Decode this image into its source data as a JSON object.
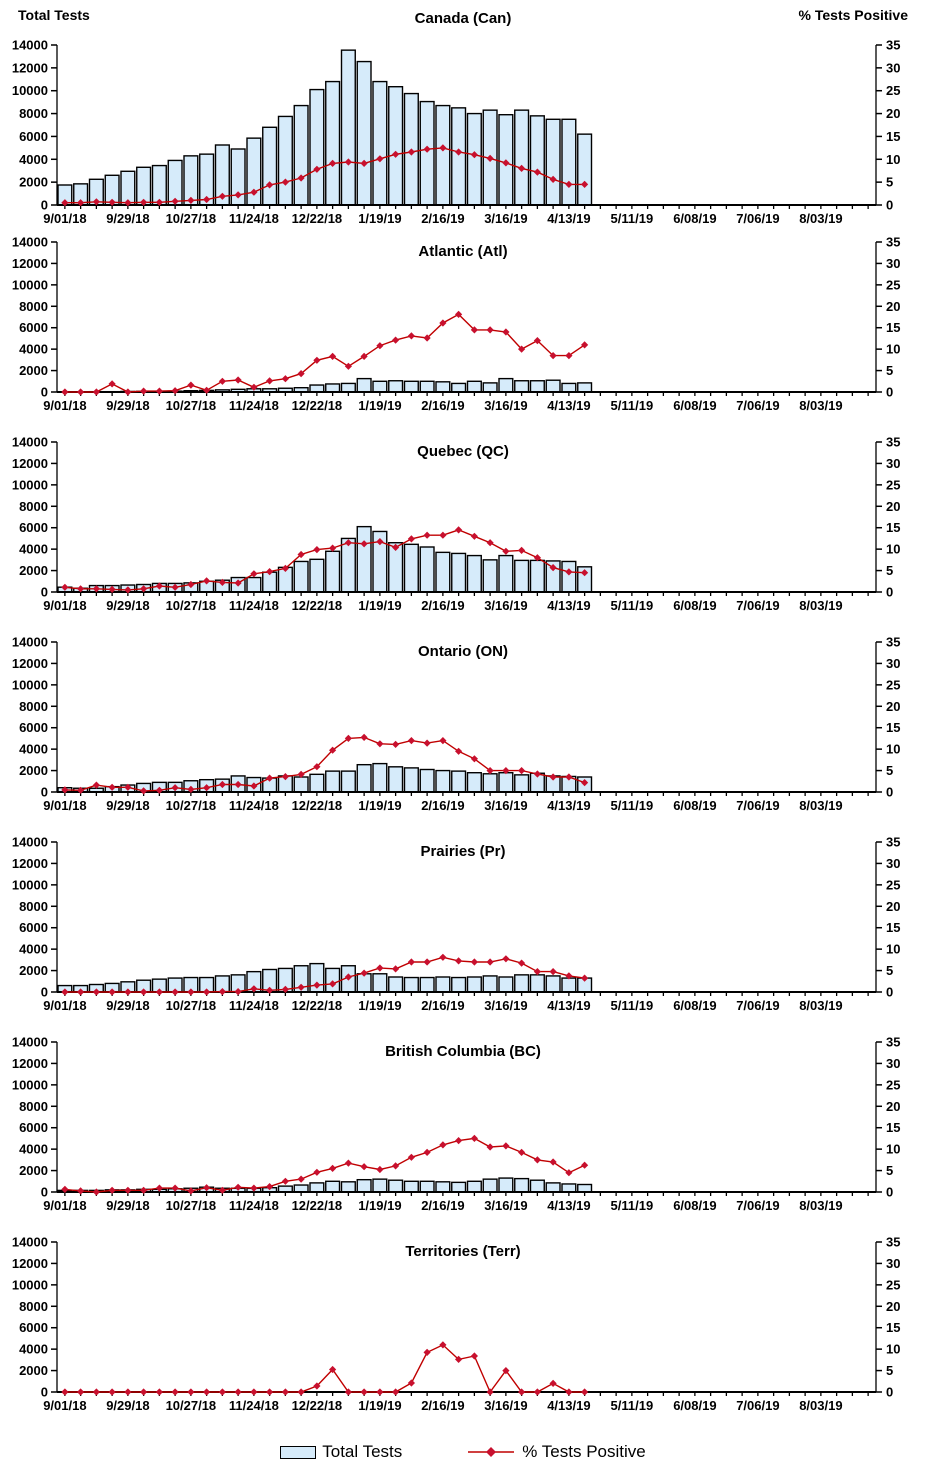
{
  "page": {
    "left_axis_title": "Total Tests",
    "right_axis_title": "% Tests Positive"
  },
  "legend": {
    "bars_label": "Total Tests",
    "line_label": "% Tests Positive"
  },
  "colors": {
    "bar_fill": "#D6EBFA",
    "bar_stroke": "#000000",
    "line": "#C00000",
    "marker": "#C8102E",
    "axis": "#000000"
  },
  "axes": {
    "y_left": {
      "min": 0,
      "max": 14000,
      "tick_labels": [
        "0",
        "2000",
        "4000",
        "6000",
        "8000",
        "10000",
        "12000",
        "14000"
      ]
    },
    "y_right": {
      "min": 0,
      "max": 35,
      "tick_labels": [
        "0",
        "5",
        "10",
        "15",
        "20",
        "25",
        "30",
        "35"
      ]
    },
    "x": {
      "total_weeks": 52,
      "labeled_every": 4,
      "tick_labels": [
        "9/01/18",
        "9/29/18",
        "10/27/18",
        "11/24/18",
        "12/22/18",
        "1/19/19",
        "2/16/19",
        "3/16/19",
        "4/13/19",
        "5/11/19",
        "6/08/19",
        "7/06/19",
        "8/03/19"
      ]
    }
  },
  "chart_data": [
    {
      "type": "bar+line",
      "title": "Canada (Can)",
      "series": [
        {
          "name": "Total Tests",
          "axis": "left",
          "values": [
            1750,
            1850,
            2250,
            2600,
            2950,
            3300,
            3450,
            3900,
            4300,
            4450,
            5250,
            4900,
            5850,
            6800,
            7750,
            8700,
            10100,
            10800,
            13550,
            12550,
            10800,
            10350,
            9750,
            9050,
            8700,
            8500,
            8000,
            8300,
            7900,
            8300,
            7800,
            7500,
            7500,
            6200
          ]
        },
        {
          "name": "% Tests Positive",
          "axis": "right",
          "values": [
            0.5,
            0.5,
            0.7,
            0.6,
            0.5,
            0.6,
            0.6,
            0.8,
            1.0,
            1.2,
            1.9,
            2.2,
            2.8,
            4.4,
            5.0,
            5.9,
            7.8,
            9.1,
            9.4,
            9.1,
            10.1,
            11.1,
            11.6,
            12.2,
            12.5,
            11.6,
            11.0,
            10.2,
            9.2,
            8.0,
            7.2,
            5.6,
            4.5,
            4.5
          ]
        }
      ]
    },
    {
      "type": "bar+line",
      "title": "Atlantic (Atl)",
      "series": [
        {
          "name": "Total Tests",
          "axis": "left",
          "values": [
            20,
            20,
            30,
            30,
            50,
            60,
            70,
            80,
            120,
            150,
            200,
            250,
            300,
            300,
            350,
            400,
            650,
            750,
            800,
            1250,
            1000,
            1050,
            1000,
            1000,
            950,
            800,
            1000,
            850,
            1250,
            1050,
            1050,
            1100,
            800,
            850
          ]
        },
        {
          "name": "% Tests Positive",
          "axis": "right",
          "values": [
            0,
            0,
            0,
            1.9,
            0,
            0.2,
            0.2,
            0.3,
            1.6,
            0.4,
            2.5,
            2.8,
            1.1,
            2.6,
            3.1,
            4.3,
            7.4,
            8.3,
            6.0,
            8.3,
            10.8,
            12.1,
            13.1,
            12.6,
            16.1,
            18.1,
            14.5,
            14.5,
            14.0,
            10.0,
            12.0,
            8.5,
            8.5,
            11.0
          ]
        }
      ]
    },
    {
      "type": "bar+line",
      "title": "Quebec (QC)",
      "series": [
        {
          "name": "Total Tests",
          "axis": "left",
          "values": [
            450,
            350,
            600,
            600,
            650,
            700,
            800,
            800,
            850,
            1000,
            1100,
            1350,
            1350,
            1850,
            2300,
            2850,
            3050,
            3800,
            5000,
            6100,
            5650,
            4600,
            4450,
            4200,
            3700,
            3600,
            3400,
            3000,
            3400,
            2950,
            2950,
            2900,
            2850,
            2350
          ]
        },
        {
          "name": "% Tests Positive",
          "axis": "right",
          "values": [
            1.1,
            0.75,
            0.75,
            0.6,
            0.5,
            0.75,
            1.4,
            1.1,
            1.75,
            2.6,
            2.25,
            2.1,
            4.25,
            4.75,
            5.5,
            8.75,
            9.9,
            10.25,
            11.5,
            11.25,
            11.75,
            10.4,
            12.4,
            13.25,
            13.25,
            14.5,
            13.0,
            11.5,
            9.5,
            9.7,
            8.0,
            5.7,
            4.7,
            4.5
          ]
        }
      ]
    },
    {
      "type": "bar+line",
      "title": "Ontario (ON)",
      "series": [
        {
          "name": "Total Tests",
          "axis": "left",
          "values": [
            400,
            350,
            350,
            500,
            650,
            800,
            900,
            900,
            1050,
            1150,
            1200,
            1500,
            1350,
            1300,
            1500,
            1400,
            1650,
            1950,
            1950,
            2550,
            2650,
            2350,
            2250,
            2100,
            2000,
            1950,
            1800,
            1700,
            1800,
            1600,
            1750,
            1500,
            1450,
            1400
          ]
        },
        {
          "name": "% Tests Positive",
          "axis": "right",
          "values": [
            0.5,
            0.4,
            1.6,
            1.1,
            1.1,
            0.25,
            0.4,
            1.0,
            0.6,
            1.0,
            1.75,
            1.75,
            1.4,
            3.25,
            3.6,
            4.1,
            5.9,
            9.75,
            12.5,
            12.75,
            11.25,
            11.1,
            12.0,
            11.4,
            12.0,
            9.5,
            7.75,
            5.0,
            5.0,
            5.0,
            4.2,
            3.5,
            3.5,
            2.2
          ]
        }
      ]
    },
    {
      "type": "bar+line",
      "title": "Prairies (Pr)",
      "series": [
        {
          "name": "Total Tests",
          "axis": "left",
          "values": [
            600,
            600,
            700,
            800,
            950,
            1100,
            1200,
            1300,
            1350,
            1350,
            1500,
            1600,
            1900,
            2100,
            2200,
            2450,
            2650,
            2200,
            2450,
            1700,
            1700,
            1400,
            1350,
            1350,
            1400,
            1350,
            1400,
            1500,
            1400,
            1600,
            1600,
            1500,
            1300,
            1300
          ]
        },
        {
          "name": "% Tests Positive",
          "axis": "right",
          "values": [
            0,
            0,
            0,
            0,
            0,
            0,
            0,
            0,
            0,
            0,
            0.1,
            0.1,
            0.75,
            0.4,
            0.6,
            1.1,
            1.6,
            1.9,
            3.5,
            4.4,
            5.6,
            5.4,
            7.0,
            7.0,
            8.1,
            7.25,
            7.0,
            7.0,
            7.75,
            6.75,
            4.75,
            4.75,
            3.75,
            3.25
          ]
        }
      ]
    },
    {
      "type": "bar+line",
      "title": "British Columbia (BC)",
      "series": [
        {
          "name": "Total Tests",
          "axis": "left",
          "values": [
            150,
            150,
            150,
            200,
            200,
            250,
            250,
            300,
            350,
            450,
            350,
            350,
            350,
            400,
            550,
            650,
            850,
            1000,
            950,
            1150,
            1200,
            1100,
            1000,
            1000,
            950,
            900,
            1000,
            1200,
            1300,
            1250,
            1100,
            850,
            750,
            700
          ]
        },
        {
          "name": "% Tests Positive",
          "axis": "right",
          "values": [
            0.6,
            0.25,
            0,
            0.4,
            0.4,
            0.4,
            0.9,
            0.9,
            0.25,
            1.0,
            0.4,
            1.1,
            0.9,
            1.25,
            2.5,
            3.0,
            4.6,
            5.5,
            6.75,
            5.9,
            5.25,
            6.1,
            8.1,
            9.25,
            11.0,
            12.0,
            12.5,
            10.5,
            10.75,
            9.25,
            7.5,
            7.0,
            4.5,
            6.25
          ]
        }
      ]
    },
    {
      "type": "bar+line",
      "title": "Territories (Terr)",
      "series": [
        {
          "name": "Total Tests",
          "axis": "left",
          "values": [
            0,
            0,
            0,
            0,
            0,
            0,
            0,
            0,
            0,
            0,
            0,
            0,
            0,
            0,
            0,
            0,
            0,
            0,
            0,
            0,
            0,
            0,
            0,
            0,
            0,
            0,
            0,
            0,
            0,
            0,
            0,
            0,
            0,
            0
          ]
        },
        {
          "name": "% Tests Positive",
          "axis": "right",
          "values": [
            0,
            0,
            0,
            0,
            0,
            0,
            0,
            0,
            0,
            0,
            0,
            0,
            0,
            0,
            0,
            0,
            1.4,
            5.25,
            0,
            0,
            0,
            0,
            2.1,
            9.25,
            11.0,
            7.6,
            8.4,
            0,
            5.0,
            0,
            0,
            2.0,
            0,
            0
          ]
        }
      ]
    }
  ]
}
